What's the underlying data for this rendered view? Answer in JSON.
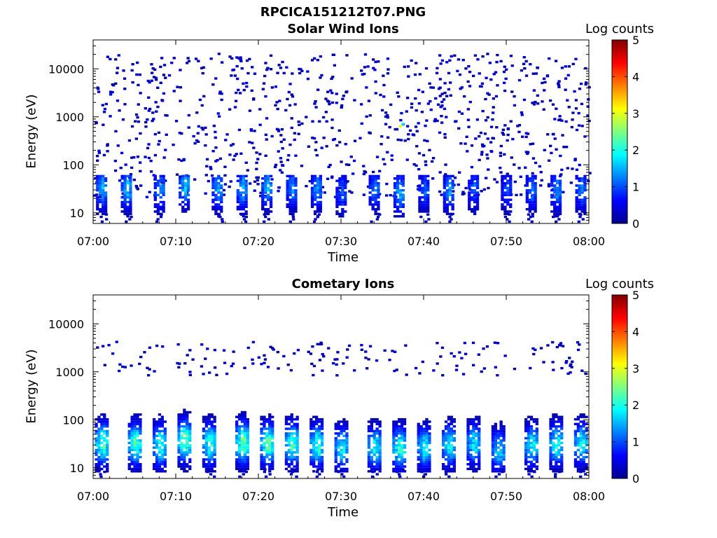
{
  "figure": {
    "filename_title": "RPCICA151212T07.PNG"
  },
  "colorbar": {
    "label": "Log counts",
    "ticks": [
      "0",
      "1",
      "2",
      "3",
      "4",
      "5"
    ],
    "range": [
      0,
      5
    ],
    "colormap": "jet"
  },
  "chart_data": [
    {
      "type": "heatmap",
      "title": "Solar Wind Ions",
      "xlabel": "Time",
      "ylabel": "Energy (eV)",
      "x_ticks": [
        "07:00",
        "07:10",
        "07:20",
        "07:30",
        "07:40",
        "07:50",
        "08:00"
      ],
      "xlim": [
        "07:00",
        "08:00"
      ],
      "y_ticks": [
        "10",
        "100",
        "1000",
        "10000"
      ],
      "ylim": [
        6,
        40000
      ],
      "yscale": "log",
      "grid": false,
      "z_label": "Log counts",
      "zlim": [
        0,
        5
      ],
      "description_of_values": "Sparse single counts (log ~0-0.5) scattered from ~20 eV to ~20000 eV; periodic bursts at ~20-50 eV reaching log counts ~1.5-2 roughly every 3 minutes; one point near 600 eV at ~07:37 reaching ~3",
      "bursts": [
        {
          "time": "07:01",
          "energy_eV": 30,
          "log_counts": 1.8
        },
        {
          "time": "07:04",
          "energy_eV": 30,
          "log_counts": 1.9
        },
        {
          "time": "07:08",
          "energy_eV": 28,
          "log_counts": 1.6
        },
        {
          "time": "07:11",
          "energy_eV": 35,
          "log_counts": 1.9
        },
        {
          "time": "07:15",
          "energy_eV": 30,
          "log_counts": 1.7
        },
        {
          "time": "07:18",
          "energy_eV": 30,
          "log_counts": 1.8
        },
        {
          "time": "07:21",
          "energy_eV": 32,
          "log_counts": 1.8
        },
        {
          "time": "07:24",
          "energy_eV": 30,
          "log_counts": 1.6
        },
        {
          "time": "07:27",
          "energy_eV": 30,
          "log_counts": 1.6
        },
        {
          "time": "07:30",
          "energy_eV": 25,
          "log_counts": 1.3
        },
        {
          "time": "07:34",
          "energy_eV": 30,
          "log_counts": 1.5
        },
        {
          "time": "07:37",
          "energy_eV": 25,
          "log_counts": 1.8
        },
        {
          "time": "07:40",
          "energy_eV": 28,
          "log_counts": 1.3
        },
        {
          "time": "07:43",
          "energy_eV": 28,
          "log_counts": 1.6
        },
        {
          "time": "07:46",
          "energy_eV": 30,
          "log_counts": 1.3
        },
        {
          "time": "07:50",
          "energy_eV": 28,
          "log_counts": 1.2
        },
        {
          "time": "07:53",
          "energy_eV": 28,
          "log_counts": 1.4
        },
        {
          "time": "07:56",
          "energy_eV": 28,
          "log_counts": 1.6
        },
        {
          "time": "07:59",
          "energy_eV": 28,
          "log_counts": 1.5
        }
      ],
      "hotspot": {
        "time": "07:37",
        "energy_eV": 600,
        "log_counts": 3.0
      }
    },
    {
      "type": "heatmap",
      "title": "Cometary Ions",
      "xlabel": "Time",
      "ylabel": "Energy (eV)",
      "x_ticks": [
        "07:00",
        "07:10",
        "07:20",
        "07:30",
        "07:40",
        "07:50",
        "08:00"
      ],
      "xlim": [
        "07:00",
        "08:00"
      ],
      "y_ticks": [
        "10",
        "100",
        "1000",
        "10000"
      ],
      "ylim": [
        6,
        40000
      ],
      "yscale": "log",
      "grid": false,
      "z_label": "Log counts",
      "zlim": [
        0,
        5
      ],
      "description_of_values": "Periodic vertical bursts roughly every 3 minutes from ~15 eV to ~500 eV, peaking ~20-40 eV at log counts ~2.5-3; sparse counts 1000-4000 eV",
      "bursts": [
        {
          "time": "07:01",
          "energy_eV": 30,
          "log_counts": 2.8
        },
        {
          "time": "07:05",
          "energy_eV": 30,
          "log_counts": 2.8
        },
        {
          "time": "07:08",
          "energy_eV": 28,
          "log_counts": 2.6
        },
        {
          "time": "07:11",
          "energy_eV": 35,
          "log_counts": 3.0
        },
        {
          "time": "07:14",
          "energy_eV": 30,
          "log_counts": 2.6
        },
        {
          "time": "07:18",
          "energy_eV": 32,
          "log_counts": 3.0
        },
        {
          "time": "07:21",
          "energy_eV": 30,
          "log_counts": 2.8
        },
        {
          "time": "07:24",
          "energy_eV": 30,
          "log_counts": 2.7
        },
        {
          "time": "07:27",
          "energy_eV": 28,
          "log_counts": 2.6
        },
        {
          "time": "07:30",
          "energy_eV": 25,
          "log_counts": 2.3
        },
        {
          "time": "07:34",
          "energy_eV": 25,
          "log_counts": 2.4
        },
        {
          "time": "07:37",
          "energy_eV": 25,
          "log_counts": 2.6
        },
        {
          "time": "07:40",
          "energy_eV": 25,
          "log_counts": 2.3
        },
        {
          "time": "07:43",
          "energy_eV": 28,
          "log_counts": 2.4
        },
        {
          "time": "07:46",
          "energy_eV": 30,
          "log_counts": 2.2
        },
        {
          "time": "07:49",
          "energy_eV": 22,
          "log_counts": 2.1
        },
        {
          "time": "07:53",
          "energy_eV": 28,
          "log_counts": 2.3
        },
        {
          "time": "07:56",
          "energy_eV": 30,
          "log_counts": 2.5
        },
        {
          "time": "07:59",
          "energy_eV": 30,
          "log_counts": 2.4
        }
      ]
    }
  ]
}
